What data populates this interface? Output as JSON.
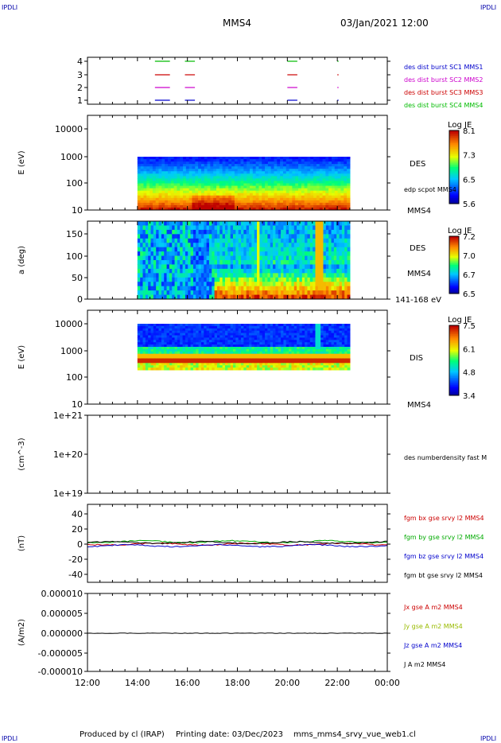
{
  "header": {
    "corner_label": "IPDLI",
    "spacecraft": "MMS4",
    "datetime": "03/Jan/2021 12:00"
  },
  "footer": {
    "produced_by": "Produced by cl (IRAP)",
    "printing_date": "Printing date: 03/Dec/2023",
    "filename": "mms_mms4_srvy_vue_web1.cl"
  },
  "x_axis": {
    "range": [
      "12:00",
      "00:00"
    ],
    "ticks": [
      "12:00",
      "14:00",
      "16:00",
      "18:00",
      "20:00",
      "22:00",
      "00:00"
    ]
  },
  "chart_data": [
    {
      "type": "scatter",
      "id": "burst",
      "yticks": [
        "4",
        "3",
        "2",
        "1"
      ],
      "legend": [
        {
          "label": "des dist burst SC1 MMS1",
          "color": "#0000cc"
        },
        {
          "label": "des dist burst SC2 MMS2",
          "color": "#cc00cc"
        },
        {
          "label": "des dist burst SC3 MMS3",
          "color": "#cc0000"
        },
        {
          "label": "des dist burst SC4 MMS4",
          "color": "#00bb00"
        }
      ],
      "intervals_hours": [
        [
          2.7,
          3.3
        ],
        [
          3.9,
          4.3
        ],
        [
          8.0,
          8.4
        ],
        [
          10.0,
          10.05
        ]
      ]
    },
    {
      "type": "heatmap",
      "id": "des-energy",
      "ylabel": "E (eV)",
      "yticks": [
        "10000",
        "1000",
        "100",
        "10"
      ],
      "ylim": [
        10,
        20000
      ],
      "yscale": "log",
      "right_labels": [
        "DES",
        "edp scpot MMS4",
        "MMS4"
      ],
      "colorbar": {
        "title": "Log JE",
        "ticks": [
          "8.1",
          "7.3",
          "6.5",
          "5.6"
        ]
      },
      "data_range_hours": [
        2.0,
        10.5
      ]
    },
    {
      "type": "heatmap",
      "id": "des-pitch",
      "ylabel": "a (deg)",
      "yticks": [
        "150",
        "100",
        "50",
        "0"
      ],
      "ylim": [
        0,
        180
      ],
      "right_labels": [
        "DES",
        "MMS4",
        "141-168 eV"
      ],
      "colorbar": {
        "title": "Log JE",
        "ticks": [
          "7.2",
          "7.0",
          "6.7",
          "6.5"
        ]
      },
      "data_range_hours": [
        2.0,
        10.5
      ]
    },
    {
      "type": "heatmap",
      "id": "dis-energy",
      "ylabel": "E (eV)",
      "yticks": [
        "10000",
        "1000",
        "100",
        "10"
      ],
      "ylim": [
        10,
        20000
      ],
      "yscale": "log",
      "right_labels": [
        "DIS",
        "MMS4"
      ],
      "colorbar": {
        "title": "Log JE",
        "ticks": [
          "7.5",
          "6.1",
          "4.8",
          "3.4"
        ]
      },
      "data_range_hours": [
        2.0,
        10.5
      ]
    },
    {
      "type": "line",
      "id": "density",
      "ylabel": "(cm^-3)",
      "yticks": [
        "1e+21",
        "1e+20",
        "1e+19"
      ],
      "ylim": [
        1e+19,
        1e+21
      ],
      "yscale": "log",
      "legend": [
        {
          "label": "des numberdensity fast M",
          "color": "#000000"
        }
      ]
    },
    {
      "type": "line",
      "id": "fgm",
      "ylabel": "(nT)",
      "yticks": [
        "40",
        "20",
        "0",
        "-20",
        "-40"
      ],
      "ylim": [
        -50,
        50
      ],
      "legend": [
        {
          "label": "fgm bx gse srvy l2 MMS4",
          "color": "#cc0000"
        },
        {
          "label": "fgm by gse srvy l2 MMS4",
          "color": "#00aa00"
        },
        {
          "label": "fgm bz gse srvy l2 MMS4",
          "color": "#0000cc"
        },
        {
          "label": "fgm bt gse srvy l2 MMS4",
          "color": "#000000"
        }
      ]
    },
    {
      "type": "line",
      "id": "current",
      "ylabel": "(A/m2)",
      "yticks": [
        "0.000010",
        "0.000005",
        "0.000000",
        "-0.000005",
        "-0.000010"
      ],
      "ylim": [
        -1e-05,
        1e-05
      ],
      "legend": [
        {
          "label": "Jx gse A m2 MMS4",
          "color": "#cc0000"
        },
        {
          "label": "Jy gse A m2 MMS4",
          "color": "#99bb00"
        },
        {
          "label": "Jz gse A m2 MMS4",
          "color": "#0000cc"
        },
        {
          "label": "J A m2 MMS4",
          "color": "#000000"
        }
      ]
    }
  ]
}
